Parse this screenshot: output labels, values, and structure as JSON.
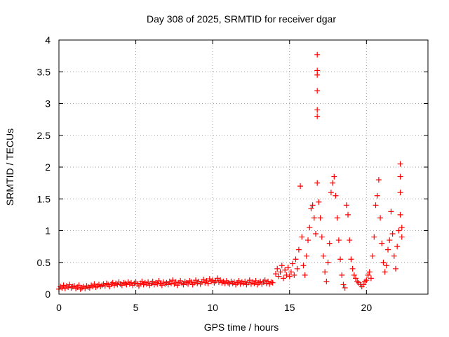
{
  "chart_data": {
    "type": "scatter",
    "title": "Day 308 of 2025, SRMTID for receiver dgar",
    "xlabel": "GPS time / hours",
    "ylabel": "SRMTID / TECUs",
    "xlim": [
      0,
      24
    ],
    "ylim": [
      0,
      4
    ],
    "xticks": [
      0,
      5,
      10,
      15,
      20
    ],
    "xtick_labels": [
      "0",
      "5",
      "10",
      "15",
      "20"
    ],
    "yticks": [
      0,
      0.5,
      1,
      1.5,
      2,
      2.5,
      3,
      3.5,
      4
    ],
    "ytick_labels": [
      "0",
      "0.5",
      "1",
      "1.5",
      "2",
      "2.5",
      "3",
      "3.5",
      "4"
    ],
    "grid": true,
    "marker": "+",
    "series_color": "#ff0000",
    "series": [
      {
        "name": "SRMTID",
        "points": [
          [
            0.0,
            0.08
          ],
          [
            0.1,
            0.12
          ],
          [
            0.2,
            0.1
          ],
          [
            0.3,
            0.14
          ],
          [
            0.4,
            0.09
          ],
          [
            0.5,
            0.13
          ],
          [
            0.6,
            0.11
          ],
          [
            0.7,
            0.15
          ],
          [
            0.8,
            0.1
          ],
          [
            0.9,
            0.12
          ],
          [
            1.0,
            0.13
          ],
          [
            1.1,
            0.09
          ],
          [
            1.2,
            0.11
          ],
          [
            1.3,
            0.14
          ],
          [
            1.4,
            0.08
          ],
          [
            1.5,
            0.1
          ],
          [
            1.6,
            0.12
          ],
          [
            1.7,
            0.09
          ],
          [
            1.8,
            0.13
          ],
          [
            1.9,
            0.11
          ],
          [
            2.0,
            0.1
          ],
          [
            2.1,
            0.14
          ],
          [
            2.2,
            0.12
          ],
          [
            2.3,
            0.16
          ],
          [
            2.4,
            0.11
          ],
          [
            2.5,
            0.13
          ],
          [
            2.6,
            0.15
          ],
          [
            2.7,
            0.12
          ],
          [
            2.8,
            0.14
          ],
          [
            2.9,
            0.16
          ],
          [
            3.0,
            0.13
          ],
          [
            3.1,
            0.17
          ],
          [
            3.2,
            0.15
          ],
          [
            3.3,
            0.12
          ],
          [
            3.4,
            0.16
          ],
          [
            3.5,
            0.18
          ],
          [
            3.6,
            0.14
          ],
          [
            3.7,
            0.17
          ],
          [
            3.8,
            0.15
          ],
          [
            3.9,
            0.19
          ],
          [
            4.0,
            0.16
          ],
          [
            4.1,
            0.14
          ],
          [
            4.2,
            0.18
          ],
          [
            4.3,
            0.17
          ],
          [
            4.4,
            0.15
          ],
          [
            4.5,
            0.19
          ],
          [
            4.6,
            0.16
          ],
          [
            4.7,
            0.18
          ],
          [
            4.8,
            0.14
          ],
          [
            4.9,
            0.17
          ],
          [
            5.0,
            0.19
          ],
          [
            5.1,
            0.16
          ],
          [
            5.2,
            0.13
          ],
          [
            5.3,
            0.17
          ],
          [
            5.4,
            0.2
          ],
          [
            5.5,
            0.15
          ],
          [
            5.6,
            0.18
          ],
          [
            5.7,
            0.16
          ],
          [
            5.8,
            0.19
          ],
          [
            5.9,
            0.14
          ],
          [
            6.0,
            0.17
          ],
          [
            6.1,
            0.2
          ],
          [
            6.2,
            0.15
          ],
          [
            6.3,
            0.18
          ],
          [
            6.4,
            0.16
          ],
          [
            6.5,
            0.21
          ],
          [
            6.6,
            0.17
          ],
          [
            6.7,
            0.14
          ],
          [
            6.8,
            0.19
          ],
          [
            6.9,
            0.16
          ],
          [
            7.0,
            0.18
          ],
          [
            7.1,
            0.15
          ],
          [
            7.2,
            0.2
          ],
          [
            7.3,
            0.17
          ],
          [
            7.4,
            0.22
          ],
          [
            7.5,
            0.16
          ],
          [
            7.6,
            0.19
          ],
          [
            7.7,
            0.14
          ],
          [
            7.8,
            0.18
          ],
          [
            7.9,
            0.21
          ],
          [
            8.0,
            0.17
          ],
          [
            8.1,
            0.15
          ],
          [
            8.2,
            0.2
          ],
          [
            8.3,
            0.18
          ],
          [
            8.4,
            0.16
          ],
          [
            8.5,
            0.21
          ],
          [
            8.6,
            0.19
          ],
          [
            8.7,
            0.15
          ],
          [
            8.8,
            0.18
          ],
          [
            8.9,
            0.22
          ],
          [
            9.0,
            0.17
          ],
          [
            9.1,
            0.2
          ],
          [
            9.2,
            0.16
          ],
          [
            9.3,
            0.19
          ],
          [
            9.4,
            0.23
          ],
          [
            9.5,
            0.18
          ],
          [
            9.6,
            0.21
          ],
          [
            9.7,
            0.17
          ],
          [
            9.8,
            0.24
          ],
          [
            9.9,
            0.2
          ],
          [
            10.0,
            0.22
          ],
          [
            10.1,
            0.18
          ],
          [
            10.2,
            0.21
          ],
          [
            10.3,
            0.25
          ],
          [
            10.4,
            0.19
          ],
          [
            10.5,
            0.22
          ],
          [
            10.6,
            0.18
          ],
          [
            10.7,
            0.2
          ],
          [
            10.8,
            0.17
          ],
          [
            10.9,
            0.21
          ],
          [
            11.0,
            0.18
          ],
          [
            11.1,
            0.16
          ],
          [
            11.2,
            0.2
          ],
          [
            11.3,
            0.17
          ],
          [
            11.4,
            0.19
          ],
          [
            11.5,
            0.15
          ],
          [
            11.6,
            0.18
          ],
          [
            11.7,
            0.21
          ],
          [
            11.8,
            0.16
          ],
          [
            11.9,
            0.19
          ],
          [
            12.0,
            0.17
          ],
          [
            12.1,
            0.2
          ],
          [
            12.2,
            0.15
          ],
          [
            12.3,
            0.18
          ],
          [
            12.4,
            0.22
          ],
          [
            12.5,
            0.16
          ],
          [
            12.6,
            0.19
          ],
          [
            12.7,
            0.17
          ],
          [
            12.8,
            0.21
          ],
          [
            12.9,
            0.15
          ],
          [
            13.0,
            0.18
          ],
          [
            13.1,
            0.2
          ],
          [
            13.2,
            0.16
          ],
          [
            13.3,
            0.19
          ],
          [
            13.4,
            0.22
          ],
          [
            13.5,
            0.17
          ],
          [
            13.6,
            0.2
          ],
          [
            13.7,
            0.16
          ],
          [
            13.8,
            0.19
          ],
          [
            13.9,
            0.18
          ],
          [
            14.1,
            0.32
          ],
          [
            14.2,
            0.4
          ],
          [
            14.3,
            0.28
          ],
          [
            14.4,
            0.35
          ],
          [
            14.5,
            0.45
          ],
          [
            14.6,
            0.25
          ],
          [
            14.7,
            0.38
          ],
          [
            14.8,
            0.3
          ],
          [
            14.9,
            0.42
          ],
          [
            15.0,
            0.28
          ],
          [
            15.1,
            0.35
          ],
          [
            15.2,
            0.48
          ],
          [
            15.3,
            0.3
          ],
          [
            15.4,
            0.55
          ],
          [
            15.5,
            0.4
          ],
          [
            15.6,
            0.7
          ],
          [
            15.7,
            1.7
          ],
          [
            15.8,
            0.9
          ],
          [
            15.9,
            0.45
          ],
          [
            16.0,
            0.3
          ],
          [
            16.1,
            0.6
          ],
          [
            16.2,
            0.85
          ],
          [
            16.3,
            1.05
          ],
          [
            16.4,
            1.35
          ],
          [
            16.5,
            1.4
          ],
          [
            16.6,
            1.2
          ],
          [
            16.7,
            0.95
          ],
          [
            16.8,
            1.75
          ],
          [
            16.9,
            1.45
          ],
          [
            17.0,
            1.2
          ],
          [
            16.8,
            3.77
          ],
          [
            16.8,
            3.52
          ],
          [
            16.8,
            3.45
          ],
          [
            16.8,
            3.2
          ],
          [
            16.8,
            2.9
          ],
          [
            16.8,
            2.8
          ],
          [
            17.1,
            0.9
          ],
          [
            17.2,
            0.6
          ],
          [
            17.3,
            0.35
          ],
          [
            17.4,
            0.2
          ],
          [
            17.5,
            0.5
          ],
          [
            17.6,
            0.8
          ],
          [
            17.7,
            1.6
          ],
          [
            17.8,
            1.75
          ],
          [
            17.9,
            1.85
          ],
          [
            18.0,
            1.55
          ],
          [
            18.1,
            1.2
          ],
          [
            18.2,
            0.85
          ],
          [
            18.3,
            0.55
          ],
          [
            18.4,
            0.3
          ],
          [
            18.5,
            0.15
          ],
          [
            18.6,
            0.1
          ],
          [
            18.7,
            1.4
          ],
          [
            18.8,
            1.25
          ],
          [
            18.9,
            0.85
          ],
          [
            19.0,
            0.55
          ],
          [
            19.1,
            0.4
          ],
          [
            19.2,
            0.3
          ],
          [
            19.3,
            0.25
          ],
          [
            19.4,
            0.2
          ],
          [
            19.5,
            0.18
          ],
          [
            19.6,
            0.15
          ],
          [
            19.7,
            0.12
          ],
          [
            19.8,
            0.15
          ],
          [
            19.9,
            0.2
          ],
          [
            20.0,
            0.22
          ],
          [
            20.1,
            0.3
          ],
          [
            20.2,
            0.35
          ],
          [
            20.3,
            0.25
          ],
          [
            20.4,
            0.6
          ],
          [
            20.5,
            0.9
          ],
          [
            20.6,
            1.4
          ],
          [
            20.7,
            1.55
          ],
          [
            20.8,
            1.8
          ],
          [
            20.9,
            1.2
          ],
          [
            21.0,
            0.8
          ],
          [
            21.1,
            0.5
          ],
          [
            21.2,
            0.35
          ],
          [
            21.3,
            0.45
          ],
          [
            21.4,
            0.7
          ],
          [
            21.5,
            0.85
          ],
          [
            21.6,
            1.3
          ],
          [
            21.7,
            0.95
          ],
          [
            21.8,
            0.6
          ],
          [
            21.9,
            0.4
          ],
          [
            22.0,
            0.75
          ],
          [
            22.1,
            1.0
          ],
          [
            22.2,
            1.25
          ],
          [
            22.2,
            1.6
          ],
          [
            22.2,
            1.85
          ],
          [
            22.2,
            2.05
          ],
          [
            22.3,
            0.9
          ],
          [
            22.3,
            1.05
          ]
        ]
      }
    ]
  }
}
